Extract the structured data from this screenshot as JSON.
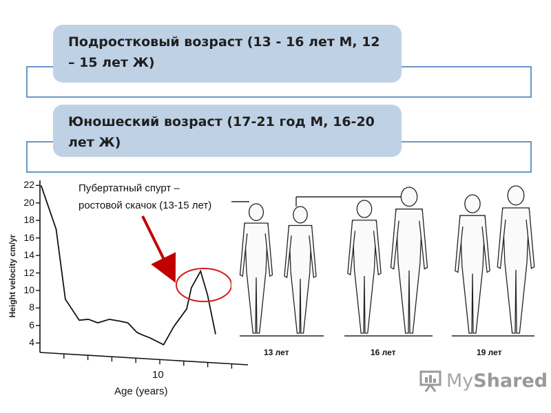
{
  "box1": {
    "text": "Подростковый возраст (13 - 16 лет М, 12 – 15 лет Ж)"
  },
  "box2": {
    "text": "Юношеский возраст (17-21 год М, 16-20 лет Ж)"
  },
  "annotation": {
    "text": "Пубертатный спурт – ростовой скачок (13-15 лет)"
  },
  "chart_data": {
    "type": "line",
    "title": "",
    "xlabel": "Age (years)",
    "ylabel": "Height velocity cm/yr",
    "x_tick_labels": [
      "10"
    ],
    "y_ticks": [
      "22",
      "20",
      "18",
      "16",
      "14",
      "12",
      "10",
      "8",
      "6",
      "4"
    ],
    "ylim": [
      3,
      22.5
    ],
    "xlim": [
      0,
      18
    ],
    "series": [
      {
        "x": [
          0.1,
          1.4,
          2.2,
          3.4,
          4.2,
          5.0,
          6.0,
          6.9,
          7.6,
          8.4,
          8.9,
          9.5,
          10.7,
          11.6,
          12.7,
          13.1,
          13.9,
          14.5,
          15.2
        ],
        "y": [
          22,
          17,
          9,
          6.6,
          6.7,
          6.3,
          6.7,
          6.5,
          6.3,
          5.2,
          4.9,
          4.6,
          3.8,
          5.9,
          7.9,
          10.3,
          12.2,
          9.5,
          5.0
        ]
      }
    ],
    "grid": false,
    "highlight": {
      "x": 14.0,
      "y": 11.8,
      "shape": "red ellipse"
    }
  },
  "figure_labels": [
    "13 лет",
    "16 лет",
    "19 лет"
  ],
  "logo": {
    "text_my": "My",
    "text_shared": "Shared"
  },
  "colors": {
    "frame": "#6b96c4",
    "pill": "#bfd1e5",
    "arrow": "#c00000",
    "logo": "#a6a6a6"
  }
}
